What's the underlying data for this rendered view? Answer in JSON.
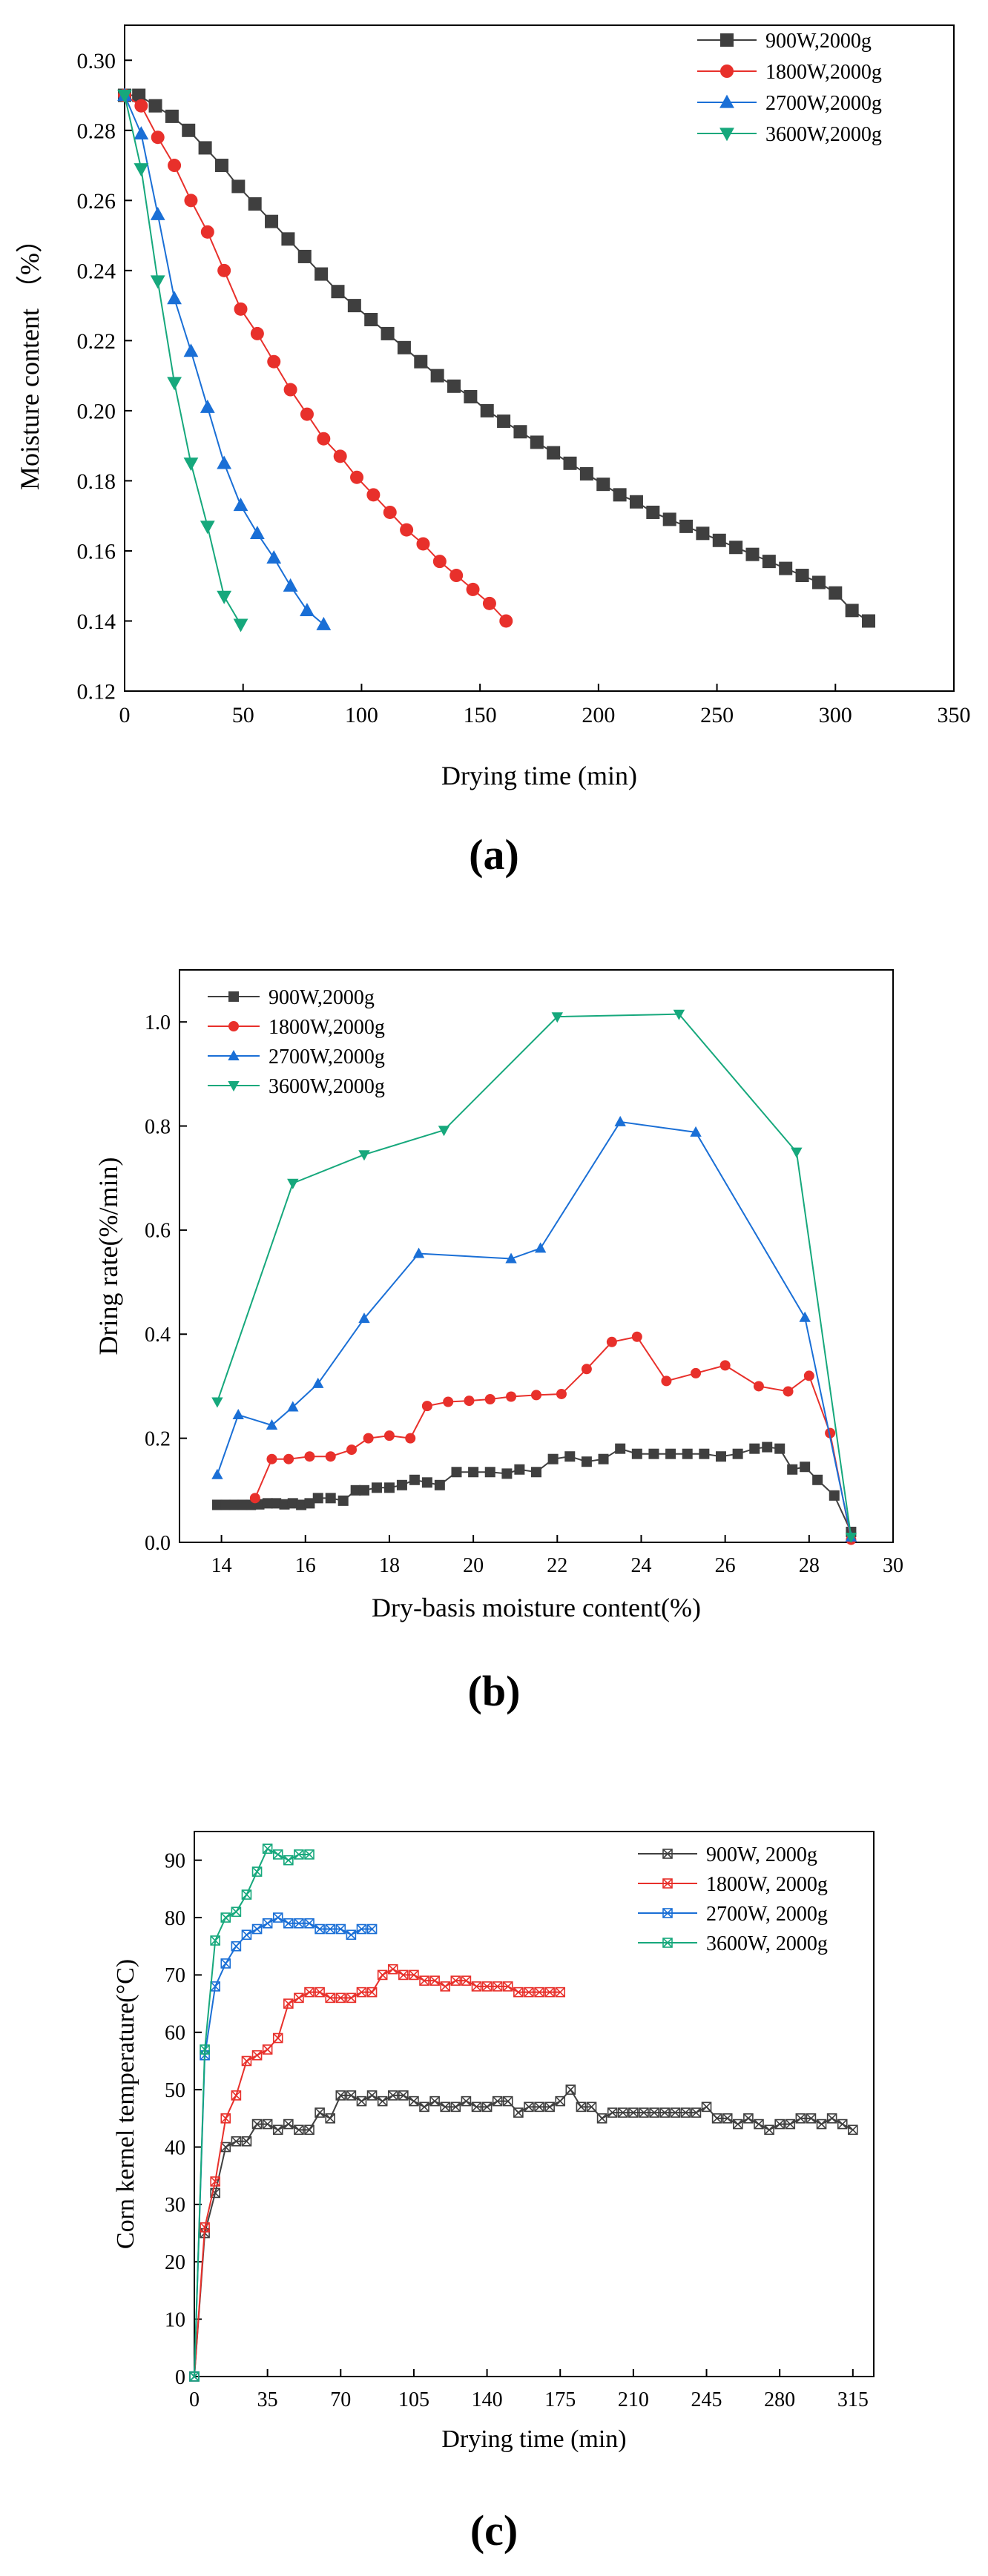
{
  "chart_data": [
    {
      "type": "line",
      "panel_label": "(a)",
      "xlabel": "Drying time (min)",
      "ylabel": "Moisture content （%）",
      "xlim": [
        0,
        350
      ],
      "ylim": [
        0.12,
        0.31
      ],
      "xticks": [
        0,
        50,
        100,
        150,
        200,
        250,
        300,
        350
      ],
      "yticks": [
        0.12,
        0.14,
        0.16,
        0.18,
        0.2,
        0.22,
        0.24,
        0.26,
        0.28,
        0.3
      ],
      "ytick_labels": [
        "0.12",
        "0.14",
        "0.16",
        "0.18",
        "0.20",
        "0.22",
        "0.24",
        "0.26",
        "0.28",
        "0.30"
      ],
      "legend_position": "top-right",
      "series": [
        {
          "name": "900W,2000g",
          "color": "#3f3f3f",
          "marker": "square",
          "x": [
            0,
            6,
            13,
            20,
            27,
            34,
            41,
            48,
            55,
            62,
            69,
            76,
            83,
            90,
            97,
            104,
            111,
            118,
            125,
            132,
            139,
            146,
            153,
            160,
            167,
            174,
            181,
            188,
            195,
            202,
            209,
            216,
            223,
            230,
            237,
            244,
            251,
            258,
            265,
            272,
            279,
            286,
            293,
            300,
            307,
            314
          ],
          "y": [
            0.29,
            0.29,
            0.287,
            0.284,
            0.28,
            0.275,
            0.27,
            0.264,
            0.259,
            0.254,
            0.249,
            0.244,
            0.239,
            0.234,
            0.23,
            0.226,
            0.222,
            0.218,
            0.214,
            0.21,
            0.207,
            0.204,
            0.2,
            0.197,
            0.194,
            0.191,
            0.188,
            0.185,
            0.182,
            0.179,
            0.176,
            0.174,
            0.171,
            0.169,
            0.167,
            0.165,
            0.163,
            0.161,
            0.159,
            0.157,
            0.155,
            0.153,
            0.151,
            0.148,
            0.143,
            0.14
          ]
        },
        {
          "name": "1800W,2000g",
          "color": "#e8302b",
          "marker": "circle",
          "x": [
            0,
            7,
            14,
            21,
            28,
            35,
            42,
            49,
            56,
            63,
            70,
            77,
            84,
            91,
            98,
            105,
            112,
            119,
            126,
            133,
            140,
            147,
            154,
            161
          ],
          "y": [
            0.29,
            0.287,
            0.278,
            0.27,
            0.26,
            0.251,
            0.24,
            0.229,
            0.222,
            0.214,
            0.206,
            0.199,
            0.192,
            0.187,
            0.181,
            0.176,
            0.171,
            0.166,
            0.162,
            0.157,
            0.153,
            0.149,
            0.145,
            0.14
          ]
        },
        {
          "name": "2700W,2000g",
          "color": "#1a6fd6",
          "marker": "triangle-up",
          "x": [
            0,
            7,
            14,
            21,
            28,
            35,
            42,
            49,
            56,
            63,
            70,
            77,
            84
          ],
          "y": [
            0.29,
            0.279,
            0.256,
            0.232,
            0.217,
            0.201,
            0.185,
            0.173,
            0.165,
            0.158,
            0.15,
            0.143,
            0.139
          ]
        },
        {
          "name": "3600W,2000g",
          "color": "#16a87c",
          "marker": "triangle-down",
          "x": [
            0,
            7,
            14,
            21,
            28,
            35,
            42,
            49
          ],
          "y": [
            0.29,
            0.269,
            0.237,
            0.208,
            0.185,
            0.167,
            0.147,
            0.139
          ]
        }
      ]
    },
    {
      "type": "line",
      "panel_label": "(b)",
      "xlabel": "Dry-basis moisture content(%)",
      "ylabel": "Dring rate(%/min)",
      "xlim": [
        13,
        30
      ],
      "ylim": [
        0,
        1.1
      ],
      "xticks": [
        14,
        16,
        18,
        20,
        22,
        24,
        26,
        28,
        30
      ],
      "yticks": [
        0,
        0.2,
        0.4,
        0.6,
        0.8,
        1.0
      ],
      "ytick_labels": [
        "0.0",
        "0.2",
        "0.4",
        "0.6",
        "0.8",
        "1.0"
      ],
      "legend_position": "top-left",
      "series": [
        {
          "name": "900W,2000g",
          "color": "#3f3f3f",
          "marker": "square",
          "x": [
            13.9,
            14.1,
            14.3,
            14.5,
            14.7,
            14.9,
            15.1,
            15.3,
            15.5,
            15.7,
            15.9,
            16.1,
            16.3,
            16.6,
            16.9,
            17.2,
            17.4,
            17.7,
            18.0,
            18.3,
            18.6,
            18.9,
            19.2,
            19.6,
            20.0,
            20.4,
            20.8,
            21.1,
            21.5,
            21.9,
            22.3,
            22.7,
            23.1,
            23.5,
            23.9,
            24.3,
            24.7,
            25.1,
            25.5,
            25.9,
            26.3,
            26.7,
            27.0,
            27.3,
            27.6,
            27.9,
            28.2,
            28.6,
            29.0
          ],
          "y": [
            0.072,
            0.072,
            0.072,
            0.072,
            0.072,
            0.073,
            0.075,
            0.075,
            0.073,
            0.075,
            0.072,
            0.075,
            0.085,
            0.085,
            0.08,
            0.1,
            0.1,
            0.105,
            0.105,
            0.11,
            0.12,
            0.115,
            0.11,
            0.135,
            0.135,
            0.135,
            0.132,
            0.14,
            0.135,
            0.16,
            0.165,
            0.155,
            0.16,
            0.18,
            0.17,
            0.17,
            0.17,
            0.17,
            0.17,
            0.165,
            0.17,
            0.18,
            0.183,
            0.18,
            0.14,
            0.145,
            0.12,
            0.09,
            0.02
          ]
        },
        {
          "name": "1800W,2000g",
          "color": "#e8302b",
          "marker": "circle",
          "x": [
            14.8,
            15.2,
            15.6,
            16.1,
            16.6,
            17.1,
            17.5,
            18.0,
            18.5,
            18.9,
            19.4,
            19.9,
            20.4,
            20.9,
            21.5,
            22.1,
            22.7,
            23.3,
            23.9,
            24.6,
            25.3,
            26.0,
            26.8,
            27.5,
            28.0,
            28.5,
            29.0
          ],
          "y": [
            0.085,
            0.16,
            0.16,
            0.165,
            0.165,
            0.178,
            0.2,
            0.205,
            0.2,
            0.262,
            0.27,
            0.272,
            0.275,
            0.28,
            0.283,
            0.285,
            0.333,
            0.385,
            0.395,
            0.31,
            0.325,
            0.34,
            0.3,
            0.29,
            0.32,
            0.21,
            0.005
          ]
        },
        {
          "name": "2700W,2000g",
          "color": "#1a6fd6",
          "marker": "triangle-up",
          "x": [
            13.9,
            14.4,
            15.2,
            15.7,
            16.3,
            17.4,
            18.7,
            20.9,
            21.6,
            23.5,
            25.3,
            27.9,
            29.0
          ],
          "y": [
            0.13,
            0.245,
            0.225,
            0.26,
            0.305,
            0.43,
            0.555,
            0.545,
            0.565,
            0.808,
            0.788,
            0.432,
            0.01
          ]
        },
        {
          "name": "3600W,2000g",
          "color": "#16a87c",
          "marker": "triangle-down",
          "x": [
            13.9,
            15.7,
            17.4,
            19.3,
            22.0,
            24.9,
            27.7,
            29.0
          ],
          "y": [
            0.27,
            0.69,
            0.745,
            0.792,
            1.01,
            1.015,
            0.75,
            0.01
          ]
        }
      ]
    },
    {
      "type": "line",
      "panel_label": "(c)",
      "xlabel": "Drying time (min)",
      "ylabel": "Corn kernel temperature(°C)",
      "xlim": [
        0,
        325
      ],
      "ylim": [
        0,
        95
      ],
      "xticks": [
        0,
        35,
        70,
        105,
        140,
        175,
        210,
        245,
        280,
        315
      ],
      "yticks": [
        0,
        10,
        20,
        30,
        40,
        50,
        60,
        70,
        80,
        90
      ],
      "ytick_labels": [
        "0",
        "10",
        "20",
        "30",
        "40",
        "50",
        "60",
        "70",
        "80",
        "90"
      ],
      "legend_position": "top-right",
      "series": [
        {
          "name": "900W, 2000g",
          "color": "#3f3f3f",
          "marker": "x-box",
          "x": [
            0,
            5,
            10,
            15,
            20,
            25,
            30,
            35,
            40,
            45,
            50,
            55,
            60,
            65,
            70,
            75,
            80,
            85,
            90,
            95,
            100,
            105,
            110,
            115,
            120,
            125,
            130,
            135,
            140,
            145,
            150,
            155,
            160,
            165,
            170,
            175,
            180,
            185,
            190,
            195,
            200,
            205,
            210,
            215,
            220,
            225,
            230,
            235,
            240,
            245,
            250,
            255,
            260,
            265,
            270,
            275,
            280,
            285,
            290,
            295,
            300,
            305,
            310,
            315
          ],
          "y": [
            0,
            25,
            32,
            40,
            41,
            41,
            44,
            44,
            43,
            44,
            43,
            43,
            46,
            45,
            49,
            49,
            48,
            49,
            48,
            49,
            49,
            48,
            47,
            48,
            47,
            47,
            48,
            47,
            47,
            48,
            48,
            46,
            47,
            47,
            47,
            48,
            50,
            47,
            47,
            45,
            46,
            46,
            46,
            46,
            46,
            46,
            46,
            46,
            46,
            47,
            45,
            45,
            44,
            45,
            44,
            43,
            44,
            44,
            45,
            45,
            44,
            45,
            44,
            43
          ]
        },
        {
          "name": "1800W, 2000g",
          "color": "#e8302b",
          "marker": "x-box",
          "x": [
            0,
            5,
            10,
            15,
            20,
            25,
            30,
            35,
            40,
            45,
            50,
            55,
            60,
            65,
            70,
            75,
            80,
            85,
            90,
            95,
            100,
            105,
            110,
            115,
            120,
            125,
            130,
            135,
            140,
            145,
            150,
            155,
            160,
            165,
            170,
            175
          ],
          "y": [
            0,
            26,
            34,
            45,
            49,
            55,
            56,
            57,
            59,
            65,
            66,
            67,
            67,
            66,
            66,
            66,
            67,
            67,
            70,
            71,
            70,
            70,
            69,
            69,
            68,
            69,
            69,
            68,
            68,
            68,
            68,
            67,
            67,
            67,
            67,
            67
          ]
        },
        {
          "name": "2700W, 2000g",
          "color": "#1a6fd6",
          "marker": "x-box",
          "x": [
            0,
            5,
            10,
            15,
            20,
            25,
            30,
            35,
            40,
            45,
            50,
            55,
            60,
            65,
            70,
            75,
            80,
            85
          ],
          "y": [
            0,
            56,
            68,
            72,
            75,
            77,
            78,
            79,
            80,
            79,
            79,
            79,
            78,
            78,
            78,
            77,
            78,
            78
          ]
        },
        {
          "name": "3600W, 2000g",
          "color": "#16a87c",
          "marker": "x-box",
          "x": [
            0,
            5,
            10,
            15,
            20,
            25,
            30,
            35,
            40,
            45,
            50,
            55
          ],
          "y": [
            0,
            57,
            76,
            80,
            81,
            84,
            88,
            92,
            91,
            90,
            91,
            91
          ]
        }
      ]
    }
  ]
}
